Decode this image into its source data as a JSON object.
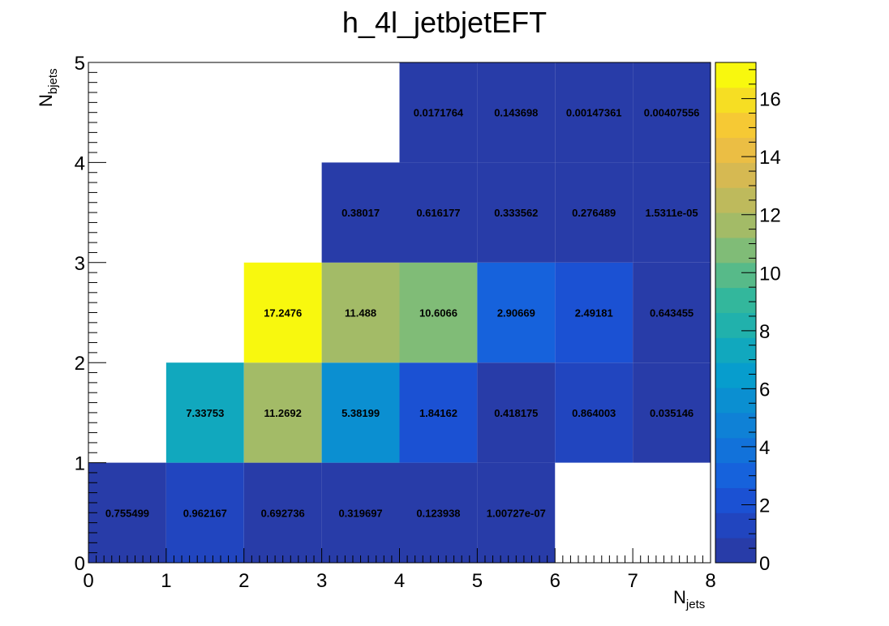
{
  "chart_data": {
    "type": "heatmap",
    "title": "h_4l_jetbjetEFT",
    "xlabel": {
      "main": "N",
      "sub": "jets"
    },
    "ylabel": {
      "main": "N",
      "sub": "bjets"
    },
    "xlim": [
      0,
      8
    ],
    "ylim": [
      0,
      5
    ],
    "x_ticks": [
      "0",
      "1",
      "2",
      "3",
      "4",
      "5",
      "6",
      "7",
      "8"
    ],
    "y_ticks": [
      "0",
      "1",
      "2",
      "3",
      "4",
      "5"
    ],
    "z_range": [
      0,
      17.2476
    ],
    "z_ticks": [
      "0",
      "2",
      "4",
      "6",
      "8",
      "10",
      "12",
      "14",
      "16"
    ],
    "colormap": "parula",
    "cells": [
      {
        "x": 0,
        "y": 0,
        "value": 0.755499,
        "label": "0.755499"
      },
      {
        "x": 1,
        "y": 0,
        "value": 0.962167,
        "label": "0.962167"
      },
      {
        "x": 2,
        "y": 0,
        "value": 0.692736,
        "label": "0.692736"
      },
      {
        "x": 3,
        "y": 0,
        "value": 0.319697,
        "label": "0.319697"
      },
      {
        "x": 4,
        "y": 0,
        "value": 0.123938,
        "label": "0.123938"
      },
      {
        "x": 5,
        "y": 0,
        "value": 1.00727e-07,
        "label": "1.00727e-07"
      },
      {
        "x": 1,
        "y": 1,
        "value": 7.33753,
        "label": "7.33753"
      },
      {
        "x": 2,
        "y": 1,
        "value": 11.2692,
        "label": "11.2692"
      },
      {
        "x": 3,
        "y": 1,
        "value": 5.38199,
        "label": "5.38199"
      },
      {
        "x": 4,
        "y": 1,
        "value": 1.84162,
        "label": "1.84162"
      },
      {
        "x": 5,
        "y": 1,
        "value": 0.418175,
        "label": "0.418175"
      },
      {
        "x": 6,
        "y": 1,
        "value": 0.864003,
        "label": "0.864003"
      },
      {
        "x": 7,
        "y": 1,
        "value": 0.035146,
        "label": "0.035146"
      },
      {
        "x": 2,
        "y": 2,
        "value": 17.2476,
        "label": "17.2476"
      },
      {
        "x": 3,
        "y": 2,
        "value": 11.488,
        "label": "11.488"
      },
      {
        "x": 4,
        "y": 2,
        "value": 10.6066,
        "label": "10.6066"
      },
      {
        "x": 5,
        "y": 2,
        "value": 2.90669,
        "label": "2.90669"
      },
      {
        "x": 6,
        "y": 2,
        "value": 2.49181,
        "label": "2.49181"
      },
      {
        "x": 7,
        "y": 2,
        "value": 0.643455,
        "label": "0.643455"
      },
      {
        "x": 3,
        "y": 3,
        "value": 0.38017,
        "label": "0.38017"
      },
      {
        "x": 4,
        "y": 3,
        "value": 0.616177,
        "label": "0.616177"
      },
      {
        "x": 5,
        "y": 3,
        "value": 0.333562,
        "label": "0.333562"
      },
      {
        "x": 6,
        "y": 3,
        "value": 0.276489,
        "label": "0.276489"
      },
      {
        "x": 7,
        "y": 3,
        "value": 1.5311e-05,
        "label": "1.5311e-05"
      },
      {
        "x": 4,
        "y": 4,
        "value": 0.0171764,
        "label": "0.0171764"
      },
      {
        "x": 5,
        "y": 4,
        "value": 0.143698,
        "label": "0.143698"
      },
      {
        "x": 6,
        "y": 4,
        "value": 0.00147361,
        "label": "0.00147361"
      },
      {
        "x": 7,
        "y": 4,
        "value": 0.00407556,
        "label": "0.00407556"
      }
    ]
  }
}
